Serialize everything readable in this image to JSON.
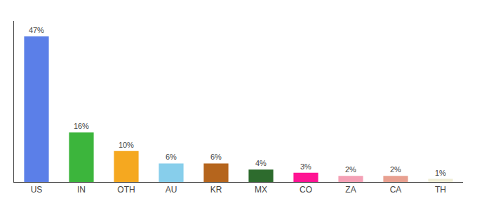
{
  "chart_data": {
    "type": "bar",
    "categories": [
      "US",
      "IN",
      "OTH",
      "AU",
      "KR",
      "MX",
      "CO",
      "ZA",
      "CA",
      "TH"
    ],
    "values": [
      47,
      16,
      10,
      6,
      6,
      4,
      3,
      2,
      2,
      1
    ],
    "value_labels": [
      "47%",
      "16%",
      "10%",
      "6%",
      "6%",
      "4%",
      "3%",
      "2%",
      "2%",
      "1%"
    ],
    "colors": [
      "#5b7fe8",
      "#3cb53c",
      "#f5a820",
      "#87ceeb",
      "#b5651d",
      "#2d6b2d",
      "#ff1493",
      "#f4a0b5",
      "#e8a090",
      "#f0eed5"
    ],
    "ylim": [
      0,
      52
    ],
    "grid": false,
    "data_labels": true,
    "tick_labels": "x"
  }
}
